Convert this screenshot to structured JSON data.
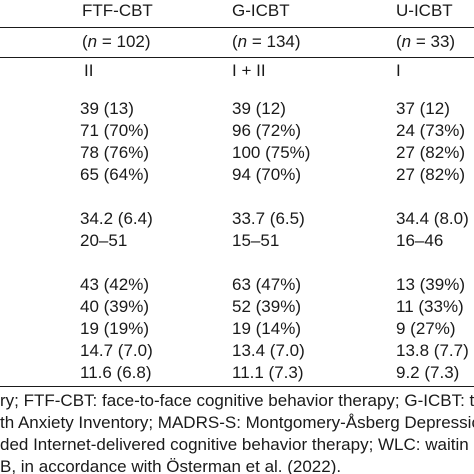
{
  "table": {
    "headers": [
      "FTF-CBT",
      "G-ICBT",
      "U-ICBT"
    ],
    "n_prefix": "(",
    "n_var": "n",
    "n_values": [
      " = 102)",
      " = 134)",
      " = 33)"
    ],
    "rows": [
      [
        "II",
        "I + II",
        "I"
      ],
      [
        "39 (13)",
        "39 (12)",
        "37 (12)"
      ],
      [
        "71 (70%)",
        "96 (72%)",
        "24 (73%)"
      ],
      [
        "78 (76%)",
        "100 (75%)",
        "27 (82%)"
      ],
      [
        "65 (64%)",
        "94 (70%)",
        "27 (82%)"
      ],
      [
        "34.2 (6.4)",
        "33.7 (6.5)",
        "34.4 (8.0)"
      ],
      [
        "20–51",
        "15–51",
        "16–46"
      ],
      [
        "43 (42%)",
        "63 (47%)",
        "13 (39%)"
      ],
      [
        "40 (39%)",
        "52 (39%)",
        "11 (33%)"
      ],
      [
        "19 (19%)",
        "19 (14%)",
        "9 (27%)"
      ],
      [
        "14.7 (7.0)",
        "13.4 (7.0)",
        "13.8 (7.7)"
      ],
      [
        "11.6 (6.8)",
        "11.1 (7.3)",
        "9.2 (7.3)"
      ]
    ]
  },
  "notes": [
    "ry; FTF-CBT: face-to-face cognitive behavior therapy; G-ICBT: the",
    "th Anxiety Inventory; MADRS-S: Montgomery-Åsberg Depressic",
    "ded Internet-delivered cognitive behavior therapy; WLC: waitin",
    "B, in accordance with Österman et al. (2022)."
  ]
}
